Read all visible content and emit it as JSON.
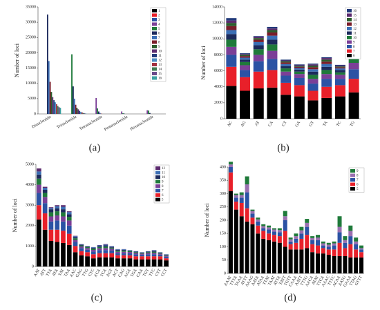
{
  "chart_data": [
    {
      "type": "bar",
      "panel_label": "(a)",
      "ylabel": "Number of loci",
      "legend": "upper right",
      "categories": [
        "Dinucleotide",
        "Trinucleotide",
        "Tetranucleotide",
        "Pentanucleotide",
        "Hexanucleotide"
      ],
      "ylim": [
        0,
        35000
      ],
      "yticks": [
        0,
        5000,
        10000,
        15000,
        20000,
        25000,
        30000,
        35000
      ],
      "series": [
        {
          "name": "1",
          "color": "#000000",
          "values": [
            0,
            0,
            0,
            0,
            0
          ]
        },
        {
          "name": "2",
          "color": "#e8202a",
          "values": [
            0,
            0,
            0,
            0,
            0
          ]
        },
        {
          "name": "3",
          "color": "#2b52a4",
          "values": [
            0,
            0,
            0,
            0,
            0
          ]
        },
        {
          "name": "4",
          "color": "#7b3f97",
          "values": [
            0,
            0,
            5200,
            800,
            1200
          ]
        },
        {
          "name": "5",
          "color": "#1f7a3a",
          "values": [
            0,
            19500,
            1800,
            200,
            1100
          ]
        },
        {
          "name": "6",
          "color": "#1c2a5c",
          "values": [
            32500,
            9000,
            800,
            100,
            300
          ]
        },
        {
          "name": "7",
          "color": "#3b6fb5",
          "values": [
            17300,
            5000,
            300,
            0,
            0
          ]
        },
        {
          "name": "8",
          "color": "#7a1d2a",
          "values": [
            10500,
            3000,
            100,
            0,
            0
          ]
        },
        {
          "name": "9",
          "color": "#2c5e2e",
          "values": [
            7200,
            2000,
            0,
            0,
            0
          ]
        },
        {
          "name": "10",
          "color": "#5b2a6e",
          "values": [
            5500,
            1500,
            0,
            0,
            0
          ]
        },
        {
          "name": "11",
          "color": "#223a7a",
          "values": [
            4500,
            1000,
            0,
            0,
            0
          ]
        },
        {
          "name": "12",
          "color": "#4a8bc2",
          "values": [
            3800,
            700,
            0,
            0,
            0
          ]
        },
        {
          "name": "13",
          "color": "#a23040",
          "values": [
            3200,
            500,
            0,
            0,
            0
          ]
        },
        {
          "name": "14",
          "color": "#3f7a52",
          "values": [
            2600,
            300,
            0,
            0,
            0
          ]
        },
        {
          "name": "15",
          "color": "#6a4a8a",
          "values": [
            2200,
            200,
            0,
            0,
            0
          ]
        },
        {
          "name": "16",
          "color": "#3aa0a0",
          "values": [
            2000,
            100,
            0,
            0,
            0
          ]
        }
      ]
    },
    {
      "type": "stacked_bar",
      "panel_label": "(b)",
      "ylabel": "Number of loci",
      "legend": "upper right",
      "categories": [
        "AC",
        "AG",
        "AT",
        "CA",
        "CT",
        "GA",
        "GT",
        "TA",
        "TC",
        "TG"
      ],
      "ylim": [
        0,
        14000
      ],
      "yticks": [
        0,
        2000,
        4000,
        6000,
        8000,
        10000,
        12000,
        14000
      ],
      "series": [
        {
          "name": "6",
          "color": "#000000",
          "values": [
            4100,
            3500,
            3800,
            3900,
            3000,
            2800,
            2300,
            2600,
            2800,
            3300
          ]
        },
        {
          "name": "7",
          "color": "#e8202a",
          "values": [
            2400,
            1700,
            2100,
            2200,
            1500,
            1400,
            1200,
            1400,
            1400,
            1700
          ]
        },
        {
          "name": "8",
          "color": "#2b52a4",
          "values": [
            1500,
            900,
            1300,
            1400,
            900,
            900,
            900,
            1000,
            800,
            1200
          ]
        },
        {
          "name": "9",
          "color": "#7b3f97",
          "values": [
            1000,
            600,
            800,
            1000,
            500,
            500,
            600,
            600,
            500,
            800
          ]
        },
        {
          "name": "10",
          "color": "#1f7a3a",
          "values": [
            900,
            400,
            700,
            800,
            400,
            300,
            500,
            500,
            300,
            700
          ]
        },
        {
          "name": "11",
          "color": "#1c2a5c",
          "values": [
            700,
            300,
            500,
            600,
            300,
            250,
            400,
            400,
            300,
            500
          ]
        },
        {
          "name": "12",
          "color": "#3b6fb5",
          "values": [
            500,
            250,
            400,
            500,
            250,
            200,
            300,
            350,
            200,
            400
          ]
        },
        {
          "name": "13",
          "color": "#7a1d2a",
          "values": [
            500,
            200,
            300,
            400,
            200,
            150,
            250,
            300,
            150,
            350
          ]
        },
        {
          "name": "14",
          "color": "#2c5e2e",
          "values": [
            400,
            150,
            200,
            300,
            150,
            100,
            200,
            250,
            100,
            300
          ]
        },
        {
          "name": "15",
          "color": "#5b2a6e",
          "values": [
            300,
            100,
            150,
            200,
            100,
            100,
            150,
            200,
            100,
            200
          ]
        },
        {
          "name": "16",
          "color": "#223a7a",
          "values": [
            300,
            100,
            100,
            200,
            100,
            100,
            100,
            100,
            100,
            100
          ]
        }
      ]
    },
    {
      "type": "stacked_bar",
      "panel_label": "(c)",
      "ylabel": "Number of loci",
      "legend": "upper right",
      "categories": [
        "AAT",
        "ATT",
        "TTA",
        "ATA",
        "TAT",
        "TAA",
        "AAC",
        "GAG",
        "TTG",
        "CTC",
        "ACA",
        "TCA",
        "AGT",
        "ACT",
        "CAG",
        "AGA",
        "TGA",
        "CAA",
        "TGT",
        "TTC",
        "CTT",
        "CCT"
      ],
      "ylim": [
        0,
        5000
      ],
      "yticks": [
        0,
        1000,
        2000,
        3000,
        4000,
        5000
      ],
      "series": [
        {
          "name": "5",
          "color": "#000000",
          "values": [
            2300,
            1800,
            1250,
            1200,
            1150,
            1050,
            700,
            550,
            500,
            400,
            450,
            450,
            450,
            400,
            400,
            400,
            350,
            350,
            350,
            350,
            350,
            300
          ]
        },
        {
          "name": "6",
          "color": "#e8202a",
          "values": [
            700,
            800,
            550,
            600,
            600,
            550,
            300,
            200,
            200,
            200,
            200,
            200,
            200,
            150,
            150,
            150,
            150,
            150,
            150,
            150,
            150,
            100
          ]
        },
        {
          "name": "7",
          "color": "#2b52a4",
          "values": [
            600,
            500,
            400,
            450,
            450,
            400,
            200,
            150,
            120,
            130,
            150,
            150,
            130,
            100,
            100,
            100,
            100,
            80,
            100,
            100,
            80,
            80
          ]
        },
        {
          "name": "8",
          "color": "#7b3f97",
          "values": [
            400,
            300,
            250,
            250,
            250,
            250,
            100,
            80,
            80,
            80,
            90,
            100,
            90,
            70,
            70,
            60,
            60,
            50,
            60,
            70,
            50,
            50
          ]
        },
        {
          "name": "9",
          "color": "#1f7a3a",
          "values": [
            300,
            200,
            200,
            200,
            200,
            180,
            80,
            50,
            50,
            60,
            60,
            70,
            50,
            50,
            50,
            40,
            40,
            30,
            40,
            50,
            30,
            30
          ]
        },
        {
          "name": "10",
          "color": "#1c2a5c",
          "values": [
            200,
            150,
            150,
            150,
            150,
            130,
            60,
            40,
            30,
            40,
            50,
            60,
            40,
            40,
            40,
            30,
            30,
            20,
            30,
            40,
            20,
            20
          ]
        },
        {
          "name": "11",
          "color": "#3b6fb5",
          "values": [
            150,
            100,
            60,
            100,
            120,
            100,
            40,
            20,
            15,
            30,
            30,
            40,
            30,
            30,
            30,
            15,
            15,
            15,
            15,
            30,
            15,
            15
          ]
        },
        {
          "name": "12",
          "color": "#5b2a6e",
          "values": [
            150,
            50,
            40,
            50,
            80,
            40,
            20,
            10,
            5,
            10,
            20,
            30,
            10,
            10,
            10,
            5,
            5,
            5,
            5,
            10,
            5,
            5
          ]
        }
      ]
    },
    {
      "type": "stacked_bar",
      "panel_label": "(d)",
      "ylabel": "Number of loci",
      "legend": "upper right",
      "categories": [
        "AAAT",
        "TTTA",
        "TAAA",
        "ATTT",
        "AAAG",
        "AATA",
        "ATAA",
        "TTAT",
        "TAAT",
        "ATTA",
        "TATT",
        "TGTT",
        "CAAA",
        "AATT",
        "TTTG",
        "AACA",
        "ATAT",
        "TTCA",
        "AAAC",
        "TTTC",
        "ACAA",
        "AATG",
        "GAAA",
        "TTAG",
        "GTTT"
      ],
      "ylim": [
        0,
        400
      ],
      "yticks": [
        0,
        50,
        100,
        150,
        200,
        250,
        300,
        350,
        400
      ],
      "series": [
        {
          "name": "5",
          "color": "#000000",
          "values": [
            310,
            240,
            215,
            195,
            185,
            150,
            130,
            125,
            120,
            115,
            100,
            90,
            90,
            90,
            95,
            80,
            75,
            75,
            70,
            65,
            65,
            65,
            60,
            60,
            60
          ]
        },
        {
          "name": "6",
          "color": "#e8202a",
          "values": [
            70,
            30,
            50,
            50,
            25,
            30,
            30,
            25,
            25,
            25,
            60,
            20,
            25,
            40,
            50,
            30,
            30,
            20,
            20,
            25,
            50,
            30,
            50,
            30,
            20
          ]
        },
        {
          "name": "7",
          "color": "#2b52a4",
          "values": [
            20,
            15,
            20,
            60,
            15,
            15,
            10,
            15,
            12,
            15,
            40,
            10,
            15,
            20,
            30,
            15,
            20,
            10,
            10,
            15,
            40,
            20,
            30,
            20,
            10
          ]
        },
        {
          "name": "8",
          "color": "#9a6fb0",
          "values": [
            10,
            10,
            10,
            30,
            10,
            8,
            8,
            8,
            8,
            8,
            15,
            8,
            10,
            12,
            15,
            8,
            10,
            8,
            8,
            8,
            20,
            10,
            20,
            10,
            5
          ]
        },
        {
          "name": "9",
          "color": "#1f7a3a",
          "values": [
            10,
            5,
            10,
            30,
            5,
            7,
            7,
            7,
            5,
            7,
            20,
            7,
            10,
            13,
            15,
            7,
            10,
            7,
            7,
            7,
            40,
            15,
            20,
            15,
            10
          ]
        }
      ]
    }
  ]
}
